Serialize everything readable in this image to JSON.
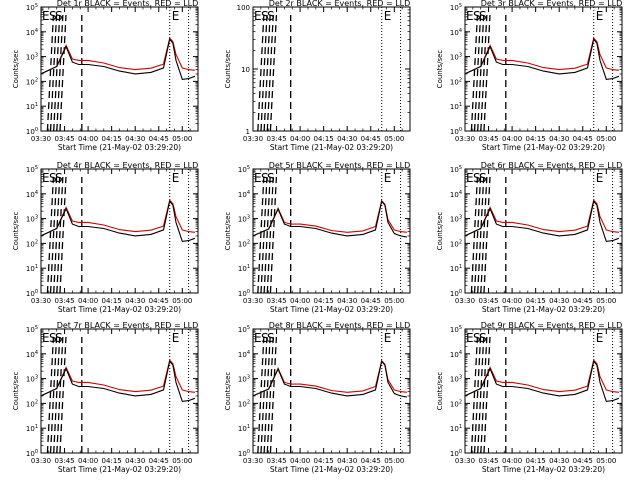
{
  "chart_data": [
    {
      "type": "line",
      "title": "Det 1r BLACK = Events, RED = LLD",
      "xlabel": "Start Time (21-May-02 03:29:20)",
      "ylabel": "Counts/sec",
      "x_range_minutes": [
        0,
        100
      ],
      "x_ticks": [
        "03:30",
        "03:45",
        "04:00",
        "04:15",
        "04:30",
        "04:45",
        "05:00"
      ],
      "y_scale": "log",
      "ylim": [
        1,
        100000
      ],
      "y_ticks": [
        "10^0",
        "10^1",
        "10^2",
        "10^3",
        "10^4",
        "10^5"
      ],
      "letters": [
        "E",
        "S",
        "S",
        "E"
      ],
      "dashed_markers_min": [
        6,
        8,
        10,
        12,
        14,
        26
      ],
      "dotted_markers_min": [
        82,
        94
      ],
      "has_data": true,
      "black_drop": true,
      "series": [
        {
          "name": "Events",
          "color": "#000000",
          "x": [
            0,
            10,
            16,
            20,
            24,
            30,
            40,
            50,
            60,
            70,
            78,
            82,
            84,
            86,
            90,
            94,
            98
          ],
          "y": [
            200,
            400,
            2500,
            600,
            480,
            480,
            400,
            260,
            200,
            230,
            350,
            5000,
            3500,
            700,
            120,
            130,
            160
          ]
        },
        {
          "name": "LLD",
          "color": "#d40000",
          "x": [
            0,
            10,
            16,
            20,
            24,
            30,
            40,
            50,
            60,
            70,
            78,
            82,
            84,
            86,
            90,
            94,
            98
          ],
          "y": [
            200,
            400,
            2800,
            800,
            700,
            700,
            550,
            360,
            300,
            340,
            500,
            5500,
            4000,
            1200,
            350,
            300,
            280
          ]
        }
      ]
    },
    {
      "type": "line",
      "title": "Det 2r BLACK = Events, RED = LLD",
      "xlabel": "Start Time (21-May-02 03:29:20)",
      "ylabel": "Counts/sec",
      "x_range_minutes": [
        0,
        100
      ],
      "x_ticks": [
        "03:30",
        "03:45",
        "04:00",
        "04:15",
        "04:30",
        "04:45",
        "05:00"
      ],
      "y_scale": "log",
      "ylim": [
        1,
        100
      ],
      "y_ticks": [
        "1",
        "10",
        "100"
      ],
      "letters": [
        "E",
        "S",
        "S",
        "E"
      ],
      "dashed_markers_min": [
        5,
        7,
        9,
        11,
        13,
        24
      ],
      "dotted_markers_min": [
        82,
        94
      ],
      "has_data": false,
      "series": []
    },
    {
      "type": "line",
      "title": "Det 3r BLACK = Events, RED = LLD",
      "xlabel": "Start Time (21-May-02 03:29:20)",
      "ylabel": "Counts/sec",
      "x_range_minutes": [
        0,
        100
      ],
      "x_ticks": [
        "03:30",
        "03:45",
        "04:00",
        "04:15",
        "04:30",
        "04:45",
        "05:00"
      ],
      "y_scale": "log",
      "ylim": [
        1,
        100000
      ],
      "y_ticks": [
        "10^0",
        "10^1",
        "10^2",
        "10^3",
        "10^4",
        "10^5"
      ],
      "letters": [
        "E",
        "S",
        "S",
        "E"
      ],
      "dashed_markers_min": [
        6,
        8,
        10,
        12,
        14,
        26
      ],
      "dotted_markers_min": [
        82,
        94
      ],
      "has_data": true,
      "black_drop": true,
      "series": [
        {
          "name": "Events",
          "color": "#000000",
          "x": [
            0,
            10,
            16,
            20,
            24,
            30,
            40,
            50,
            60,
            70,
            78,
            82,
            84,
            86,
            90,
            94,
            98
          ],
          "y": [
            200,
            400,
            2500,
            600,
            480,
            480,
            400,
            260,
            200,
            230,
            350,
            5000,
            3500,
            700,
            120,
            130,
            160
          ]
        },
        {
          "name": "LLD",
          "color": "#d40000",
          "x": [
            0,
            10,
            16,
            20,
            24,
            30,
            40,
            50,
            60,
            70,
            78,
            82,
            84,
            86,
            90,
            94,
            98
          ],
          "y": [
            200,
            400,
            2800,
            800,
            700,
            700,
            550,
            360,
            300,
            340,
            500,
            5500,
            4000,
            1200,
            350,
            300,
            280
          ]
        }
      ]
    },
    {
      "type": "line",
      "title": "Det 4r BLACK = Events, RED = LLD",
      "xlabel": "Start Time (21-May-02 03:29:20)",
      "ylabel": "Counts/sec",
      "x_range_minutes": [
        0,
        100
      ],
      "x_ticks": [
        "03:30",
        "03:45",
        "04:00",
        "04:15",
        "04:30",
        "04:45",
        "05:00"
      ],
      "y_scale": "log",
      "ylim": [
        1,
        100000
      ],
      "y_ticks": [
        "10^0",
        "10^1",
        "10^2",
        "10^3",
        "10^4",
        "10^5"
      ],
      "letters": [
        "E",
        "S",
        "S",
        "E"
      ],
      "dashed_markers_min": [
        6,
        8,
        10,
        12,
        14,
        26
      ],
      "dotted_markers_min": [
        82,
        94
      ],
      "has_data": true,
      "black_drop": true,
      "series": [
        {
          "name": "Events",
          "color": "#000000",
          "x": [
            0,
            10,
            16,
            20,
            24,
            30,
            40,
            50,
            60,
            70,
            78,
            82,
            84,
            86,
            90,
            94,
            98
          ],
          "y": [
            200,
            400,
            2500,
            600,
            480,
            480,
            400,
            260,
            200,
            230,
            350,
            5000,
            3500,
            700,
            120,
            130,
            160
          ]
        },
        {
          "name": "LLD",
          "color": "#d40000",
          "x": [
            0,
            10,
            16,
            20,
            24,
            30,
            40,
            50,
            60,
            70,
            78,
            82,
            84,
            86,
            90,
            94,
            98
          ],
          "y": [
            200,
            400,
            2800,
            800,
            700,
            700,
            550,
            360,
            300,
            340,
            500,
            5500,
            4000,
            1200,
            350,
            300,
            280
          ]
        }
      ]
    },
    {
      "type": "line",
      "title": "Det 5r BLACK = Events, RED = LLD",
      "xlabel": "Start Time (21-May-02 03:29:20)",
      "ylabel": "Counts/sec",
      "x_range_minutes": [
        0,
        100
      ],
      "x_ticks": [
        "03:30",
        "03:45",
        "04:00",
        "04:15",
        "04:30",
        "04:45",
        "05:00"
      ],
      "y_scale": "log",
      "ylim": [
        1,
        100000
      ],
      "y_ticks": [
        "10^0",
        "10^1",
        "10^2",
        "10^3",
        "10^4",
        "10^5"
      ],
      "letters": [
        "E",
        "S",
        "S",
        "E"
      ],
      "dashed_markers_min": [
        5,
        7,
        9,
        11,
        13,
        24
      ],
      "dotted_markers_min": [
        82,
        94
      ],
      "has_data": true,
      "black_drop": false,
      "series": [
        {
          "name": "Events",
          "color": "#000000",
          "x": [
            0,
            10,
            16,
            20,
            24,
            30,
            40,
            50,
            60,
            70,
            78,
            82,
            84,
            86,
            90,
            94,
            98
          ],
          "y": [
            200,
            380,
            2400,
            600,
            480,
            480,
            400,
            260,
            200,
            230,
            350,
            5000,
            3500,
            700,
            250,
            200,
            180
          ]
        },
        {
          "name": "LLD",
          "color": "#d40000",
          "x": [
            0,
            10,
            16,
            20,
            24,
            30,
            40,
            50,
            60,
            70,
            78,
            82,
            84,
            86,
            90,
            94,
            98
          ],
          "y": [
            200,
            380,
            2600,
            700,
            600,
            600,
            500,
            330,
            280,
            320,
            480,
            5200,
            3800,
            900,
            350,
            300,
            280
          ]
        }
      ]
    },
    {
      "type": "line",
      "title": "Det 6r BLACK = Events, RED = LLD",
      "xlabel": "Start Time (21-May-02 03:29:20)",
      "ylabel": "Counts/sec",
      "x_range_minutes": [
        0,
        100
      ],
      "x_ticks": [
        "03:30",
        "03:45",
        "04:00",
        "04:15",
        "04:30",
        "04:45",
        "05:00"
      ],
      "y_scale": "log",
      "ylim": [
        1,
        100000
      ],
      "y_ticks": [
        "10^0",
        "10^1",
        "10^2",
        "10^3",
        "10^4",
        "10^5"
      ],
      "letters": [
        "E",
        "S",
        "S",
        "E"
      ],
      "dashed_markers_min": [
        6,
        8,
        10,
        12,
        14,
        26
      ],
      "dotted_markers_min": [
        82,
        94
      ],
      "has_data": true,
      "black_drop": true,
      "series": [
        {
          "name": "Events",
          "color": "#000000",
          "x": [
            0,
            10,
            16,
            20,
            24,
            30,
            40,
            50,
            60,
            70,
            78,
            82,
            84,
            86,
            90,
            94,
            98
          ],
          "y": [
            200,
            400,
            2500,
            600,
            480,
            480,
            400,
            260,
            200,
            230,
            350,
            5000,
            3500,
            700,
            120,
            130,
            160
          ]
        },
        {
          "name": "LLD",
          "color": "#d40000",
          "x": [
            0,
            10,
            16,
            20,
            24,
            30,
            40,
            50,
            60,
            70,
            78,
            82,
            84,
            86,
            90,
            94,
            98
          ],
          "y": [
            200,
            400,
            2800,
            800,
            700,
            700,
            550,
            360,
            300,
            340,
            500,
            5500,
            4000,
            1200,
            350,
            300,
            280
          ]
        }
      ]
    },
    {
      "type": "line",
      "title": "Det 7r BLACK = Events, RED = LLD",
      "xlabel": "Start Time (21-May-02 03:29:20)",
      "ylabel": "Counts/sec",
      "x_range_minutes": [
        0,
        100
      ],
      "x_ticks": [
        "03:30",
        "03:45",
        "04:00",
        "04:15",
        "04:30",
        "04:45",
        "05:00"
      ],
      "y_scale": "log",
      "ylim": [
        1,
        100000
      ],
      "y_ticks": [
        "10^0",
        "10^1",
        "10^2",
        "10^3",
        "10^4",
        "10^5"
      ],
      "letters": [
        "E",
        "S",
        "S",
        "E"
      ],
      "dashed_markers_min": [
        6,
        8,
        10,
        12,
        14,
        26
      ],
      "dotted_markers_min": [
        82,
        94
      ],
      "has_data": true,
      "black_drop": true,
      "series": [
        {
          "name": "Events",
          "color": "#000000",
          "x": [
            0,
            10,
            16,
            20,
            24,
            30,
            40,
            50,
            60,
            70,
            78,
            82,
            84,
            86,
            90,
            94,
            98
          ],
          "y": [
            200,
            400,
            2500,
            600,
            480,
            480,
            400,
            260,
            200,
            230,
            350,
            5000,
            3500,
            700,
            120,
            130,
            160
          ]
        },
        {
          "name": "LLD",
          "color": "#d40000",
          "x": [
            0,
            10,
            16,
            20,
            24,
            30,
            40,
            50,
            60,
            70,
            78,
            82,
            84,
            86,
            90,
            94,
            98
          ],
          "y": [
            200,
            400,
            2800,
            800,
            700,
            700,
            550,
            360,
            300,
            340,
            500,
            5500,
            4000,
            1200,
            350,
            300,
            280
          ]
        }
      ]
    },
    {
      "type": "line",
      "title": "Det 8r BLACK = Events, RED = LLD",
      "xlabel": "Start Time (21-May-02 03:29:20)",
      "ylabel": "Counts/sec",
      "x_range_minutes": [
        0,
        100
      ],
      "x_ticks": [
        "03:30",
        "03:45",
        "04:00",
        "04:15",
        "04:30",
        "04:45",
        "05:00"
      ],
      "y_scale": "log",
      "ylim": [
        1,
        100000
      ],
      "y_ticks": [
        "10^0",
        "10^1",
        "10^2",
        "10^3",
        "10^4",
        "10^5"
      ],
      "letters": [
        "E",
        "S",
        "S",
        "E"
      ],
      "dashed_markers_min": [
        5,
        7,
        9,
        11,
        13,
        24
      ],
      "dotted_markers_min": [
        82,
        94
      ],
      "has_data": true,
      "black_drop": false,
      "series": [
        {
          "name": "Events",
          "color": "#000000",
          "x": [
            0,
            10,
            16,
            20,
            24,
            30,
            40,
            50,
            60,
            70,
            78,
            82,
            84,
            86,
            90,
            94,
            98
          ],
          "y": [
            200,
            380,
            2400,
            600,
            480,
            480,
            400,
            260,
            200,
            230,
            350,
            5000,
            3500,
            700,
            250,
            200,
            180
          ]
        },
        {
          "name": "LLD",
          "color": "#d40000",
          "x": [
            0,
            10,
            16,
            20,
            24,
            30,
            40,
            50,
            60,
            70,
            78,
            82,
            84,
            86,
            90,
            94,
            98
          ],
          "y": [
            200,
            380,
            2600,
            700,
            600,
            600,
            500,
            330,
            280,
            320,
            480,
            5200,
            3800,
            900,
            350,
            300,
            280
          ]
        }
      ]
    },
    {
      "type": "line",
      "title": "Det 9r BLACK = Events, RED = LLD",
      "xlabel": "Start Time (21-May-02 03:29:20)",
      "ylabel": "Counts/sec",
      "x_range_minutes": [
        0,
        100
      ],
      "x_ticks": [
        "03:30",
        "03:45",
        "04:00",
        "04:15",
        "04:30",
        "04:45",
        "05:00"
      ],
      "y_scale": "log",
      "ylim": [
        1,
        100000
      ],
      "y_ticks": [
        "10^0",
        "10^1",
        "10^2",
        "10^3",
        "10^4",
        "10^5"
      ],
      "letters": [
        "E",
        "S",
        "S",
        "E"
      ],
      "dashed_markers_min": [
        6,
        8,
        10,
        12,
        14,
        26
      ],
      "dotted_markers_min": [
        82,
        94
      ],
      "has_data": true,
      "black_drop": true,
      "series": [
        {
          "name": "Events",
          "color": "#000000",
          "x": [
            0,
            10,
            16,
            20,
            24,
            30,
            40,
            50,
            60,
            70,
            78,
            82,
            84,
            86,
            90,
            94,
            98
          ],
          "y": [
            200,
            400,
            2500,
            600,
            480,
            480,
            400,
            260,
            200,
            230,
            350,
            5000,
            3500,
            700,
            120,
            130,
            160
          ]
        },
        {
          "name": "LLD",
          "color": "#d40000",
          "x": [
            0,
            10,
            16,
            20,
            24,
            30,
            40,
            50,
            60,
            70,
            78,
            82,
            84,
            86,
            90,
            94,
            98
          ],
          "y": [
            200,
            400,
            2800,
            800,
            700,
            700,
            550,
            360,
            300,
            340,
            500,
            5500,
            4000,
            1200,
            350,
            300,
            280
          ]
        }
      ]
    }
  ]
}
